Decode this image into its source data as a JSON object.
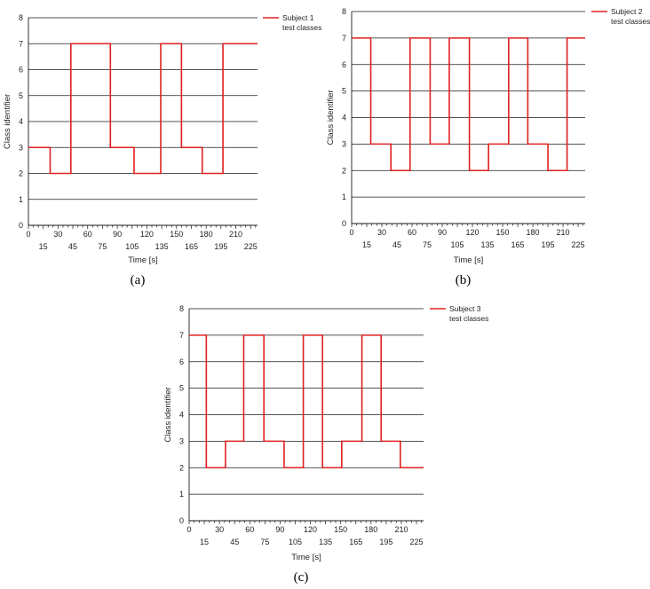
{
  "colors": {
    "series": "#e02020",
    "grid": "#1a1a1a"
  },
  "chart_data": [
    {
      "type": "line",
      "step": true,
      "caption": "(a)",
      "xlabel": "Time [s]",
      "ylabel": "Class identifier",
      "xlim": [
        0,
        232
      ],
      "ylim": [
        0,
        8
      ],
      "xticks_top": [
        "0",
        "30",
        "60",
        "90",
        "120",
        "150",
        "180",
        "210"
      ],
      "xticks_bottom": [
        "15",
        "45",
        "75",
        "105",
        "135",
        "165",
        "195",
        "225"
      ],
      "yticks": [
        "0",
        "1",
        "2",
        "3",
        "4",
        "5",
        "6",
        "7",
        "8"
      ],
      "grid": "horizontal",
      "legend_position": "top-right",
      "series": [
        {
          "name": "Subject 1\ntest classes",
          "x": [
            0,
            22,
            43,
            83,
            107,
            134,
            155,
            176,
            197,
            232
          ],
          "y": [
            3,
            2,
            7,
            3,
            2,
            7,
            3,
            2,
            7,
            7
          ]
        }
      ]
    },
    {
      "type": "line",
      "step": true,
      "caption": "(b)",
      "xlabel": "Time [s]",
      "ylabel": "Class identifier",
      "xlim": [
        0,
        232
      ],
      "ylim": [
        0,
        8
      ],
      "xticks_top": [
        "0",
        "30",
        "60",
        "90",
        "120",
        "150",
        "180",
        "210"
      ],
      "xticks_bottom": [
        "15",
        "45",
        "75",
        "105",
        "135",
        "165",
        "195",
        "225"
      ],
      "yticks": [
        "0",
        "1",
        "2",
        "3",
        "4",
        "5",
        "6",
        "7",
        "8"
      ],
      "grid": "horizontal",
      "legend_position": "top-right",
      "series": [
        {
          "name": "Subject 2\ntest classes",
          "x": [
            0,
            19,
            39,
            58,
            78,
            97,
            117,
            136,
            156,
            175,
            195,
            214,
            232
          ],
          "y": [
            7,
            3,
            2,
            7,
            3,
            7,
            2,
            3,
            7,
            3,
            2,
            7,
            7
          ]
        }
      ]
    },
    {
      "type": "line",
      "step": true,
      "caption": "(c)",
      "xlabel": "Time [s]",
      "ylabel": "Class identifier",
      "xlim": [
        0,
        232
      ],
      "ylim": [
        0,
        8
      ],
      "xticks_top": [
        "0",
        "30",
        "60",
        "90",
        "120",
        "150",
        "180",
        "210"
      ],
      "xticks_bottom": [
        "15",
        "45",
        "75",
        "105",
        "135",
        "165",
        "195",
        "225"
      ],
      "yticks": [
        "0",
        "1",
        "2",
        "3",
        "4",
        "5",
        "6",
        "7",
        "8"
      ],
      "grid": "horizontal",
      "legend_position": "top-right",
      "series": [
        {
          "name": "Subject 3\ntest classes",
          "x": [
            0,
            17,
            36,
            54,
            74,
            94,
            113,
            132,
            151,
            171,
            190,
            209,
            232
          ],
          "y": [
            7,
            2,
            3,
            7,
            3,
            2,
            7,
            2,
            3,
            7,
            3,
            2,
            2
          ]
        }
      ]
    }
  ]
}
